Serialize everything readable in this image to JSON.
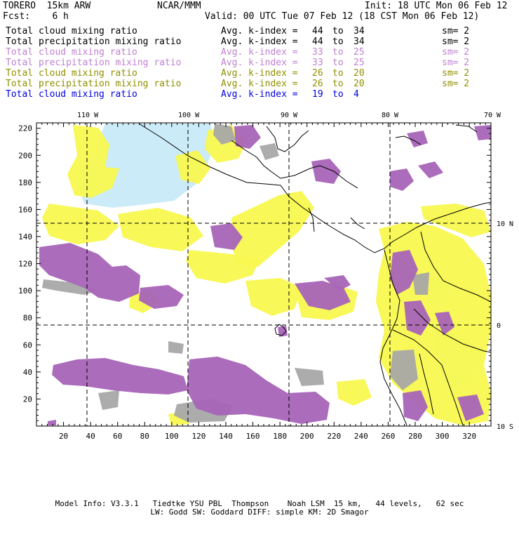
{
  "header": {
    "model": "TORERO  15km ARW",
    "org": "NCAR/MMM",
    "init": "Init: 18 UTC Mon 06 Feb 12",
    "fcst": "Fcst:    6 h",
    "valid": "Valid: 00 UTC Tue 07 Feb 12 (18 CST Mon 06 Feb 12)"
  },
  "legend": [
    {
      "field": "Total cloud mixing ratio",
      "index_label": "Avg. k-index =",
      "from": "44",
      "to_word": "to",
      "to": "34",
      "sm": "sm= 2",
      "color": "#000000"
    },
    {
      "field": "Total precipitation mixing ratio",
      "index_label": "Avg. k-index =",
      "from": "44",
      "to_word": "to",
      "to": "34",
      "sm": "sm= 2",
      "color": "#000000"
    },
    {
      "field": "Total cloud mixing ratio",
      "index_label": "Avg. k-index =",
      "from": "33",
      "to_word": "to",
      "to": "25",
      "sm": "sm= 2",
      "color": "#c080d0"
    },
    {
      "field": "Total precipitation mixing ratio",
      "index_label": "Avg. k-index =",
      "from": "33",
      "to_word": "to",
      "to": "25",
      "sm": "sm= 2",
      "color": "#c080d0"
    },
    {
      "field": "Total cloud mixing ratio",
      "index_label": "Avg. k-index =",
      "from": "26",
      "to_word": "to",
      "to": "20",
      "sm": "sm= 2",
      "color": "#909000"
    },
    {
      "field": "Total precipitation mixing ratio",
      "index_label": "Avg. k-index =",
      "from": "26",
      "to_word": "to",
      "to": "20",
      "sm": "sm= 2",
      "color": "#909000"
    },
    {
      "field": "Total cloud mixing ratio",
      "index_label": "Avg. k-index =",
      "from": "19",
      "to_word": "to",
      "to": "4",
      "sm": "",
      "color": "#0000e0"
    }
  ],
  "map": {
    "lon_labels": [
      "110 W",
      "100 W",
      "90 W",
      "80 W",
      "70 W"
    ],
    "lat_labels": [
      "10 N",
      "0",
      "10 S"
    ],
    "x_ticks": [
      "20",
      "40",
      "60",
      "80",
      "100",
      "120",
      "140",
      "160",
      "180",
      "200",
      "220",
      "240",
      "260",
      "280",
      "300",
      "320"
    ],
    "y_ticks": [
      "20",
      "40",
      "60",
      "80",
      "100",
      "120",
      "140",
      "160",
      "180",
      "200",
      "220"
    ],
    "colors": {
      "gray": "#a8a8a8",
      "purple": "#a864b8",
      "yellow": "#f8f850",
      "lightblue": "#c8eaf8"
    }
  },
  "footer": {
    "line1": "Model Info: V3.3.1   Tiedtke YSU PBL  Thompson    Noah LSM  15 km,   44 levels,   62 sec",
    "line2": "LW: Godd SW: Goddard DIFF: simple KM: 2D Smagor"
  }
}
